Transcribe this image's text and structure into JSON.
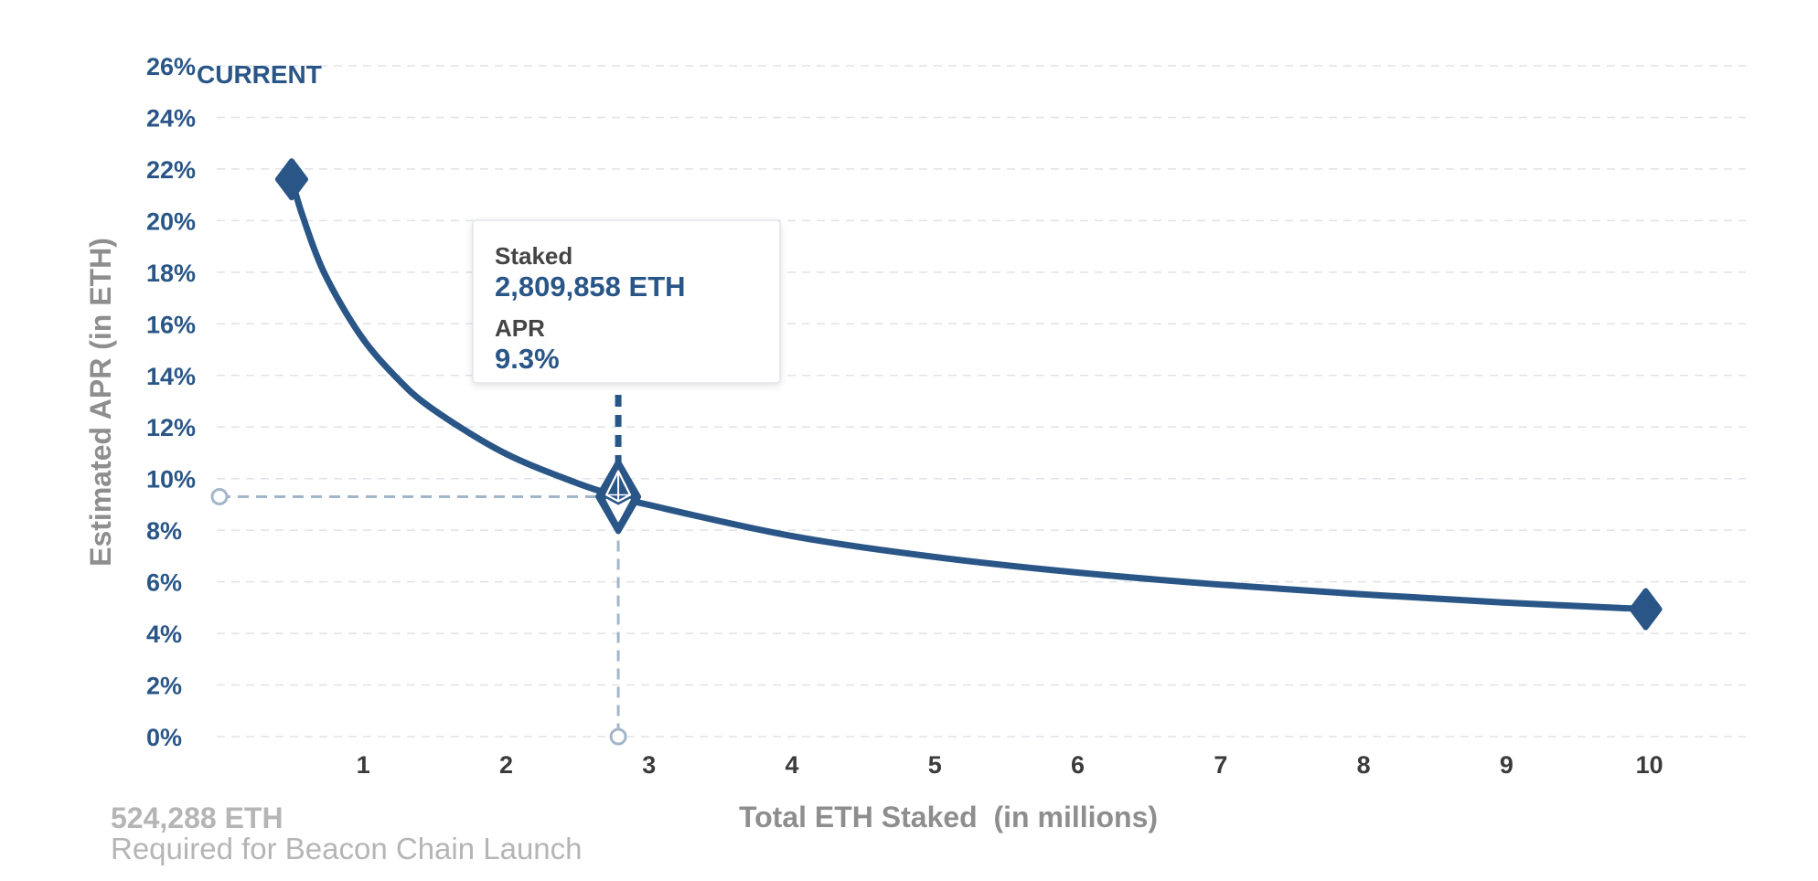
{
  "colors": {
    "line": "#2a5687",
    "grid": "#dfe3e8",
    "guide": "#a3b6c9",
    "y_tick": "#2a5687",
    "x_tick": "#3b3b3b",
    "axis_title": "#8e8e8e",
    "footnote": "#b5b5b5"
  },
  "current_label": "CURRENT",
  "tooltip": {
    "staked_label": "Staked",
    "staked_value": "2,809,858 ETH",
    "apr_label": "APR",
    "apr_value": "9.3%"
  },
  "footnote": {
    "value": "524,288 ETH",
    "caption": "Required for Beacon Chain Launch"
  },
  "chart_data": {
    "type": "line",
    "xlabel": "Total ETH Staked  (in millions)",
    "ylabel": "Estimated APR (in ETH)",
    "x_ticks": [
      1,
      2,
      3,
      4,
      5,
      6,
      7,
      8,
      9,
      10
    ],
    "x_tick_labels": [
      "1",
      "2",
      "3",
      "4",
      "5",
      "6",
      "7",
      "8",
      "9",
      "10"
    ],
    "y_ticks": [
      0,
      2,
      4,
      6,
      8,
      10,
      12,
      14,
      16,
      18,
      20,
      22,
      24,
      26
    ],
    "y_tick_labels": [
      "0%",
      "2%",
      "4%",
      "6%",
      "8%",
      "10%",
      "12%",
      "14%",
      "16%",
      "18%",
      "20%",
      "22%",
      "24%",
      "26%"
    ],
    "xlim": [
      0,
      10.7
    ],
    "ylim": [
      0,
      26
    ],
    "grid": true,
    "series": [
      {
        "x": [
          0.524288,
          0.6,
          0.75,
          1,
          1.25,
          1.5,
          2,
          2.5,
          2.809858,
          3,
          4,
          5,
          6,
          7,
          8,
          9,
          10
        ],
        "y": [
          21.6,
          20.2,
          18.0,
          15.6,
          13.96,
          12.74,
          11.03,
          9.87,
          9.3,
          9.01,
          7.8,
          6.98,
          6.37,
          5.9,
          5.52,
          5.2,
          4.94
        ]
      }
    ],
    "markers": [
      {
        "x": 0.524288,
        "y": 21.6
      },
      {
        "x": 10,
        "y": 4.94
      }
    ],
    "highlight": {
      "x": 2.809858,
      "y": 9.3
    }
  }
}
